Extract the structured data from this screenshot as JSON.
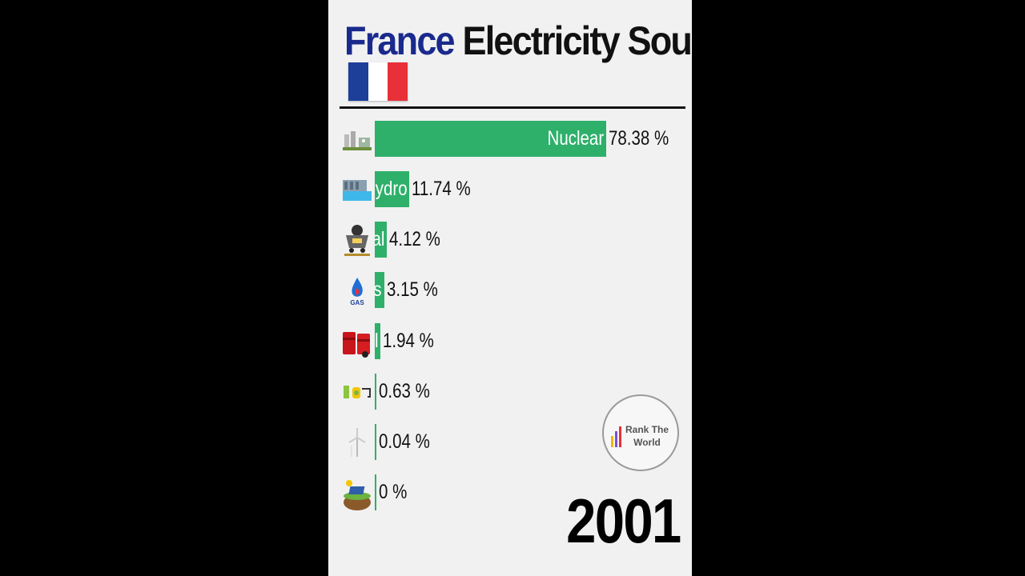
{
  "header": {
    "title_country": "France",
    "title_rest": "Electricity Source"
  },
  "flag_colors": [
    "#1d3f9a",
    "#ffffff",
    "#e8303a"
  ],
  "badge": {
    "line1": "Rank The",
    "line2": "World"
  },
  "year": "2001",
  "chart_data": {
    "type": "bar",
    "orientation": "horizontal",
    "categories": [
      "Nuclear",
      "Hydro",
      "Coal",
      "Gas",
      "Oil",
      "Biofuel",
      "Wind",
      "Solar"
    ],
    "category_labels_visible": [
      "Nuclear",
      "ydro",
      "al",
      "s",
      "l",
      "",
      "",
      ""
    ],
    "values": [
      78.38,
      11.74,
      4.12,
      3.15,
      1.94,
      0.63,
      0.04,
      0
    ],
    "value_labels": [
      "78.38 %",
      "11.74 %",
      "4.12 %",
      "3.15 %",
      "1.94 %",
      "0.63 %",
      "0.04 %",
      "0 %"
    ],
    "icons": [
      "nuclear-plant-icon",
      "hydro-dam-icon",
      "coal-cart-icon",
      "gas-flame-icon",
      "oil-barrels-icon",
      "biofuel-icon",
      "wind-turbine-icon",
      "solar-panel-icon"
    ],
    "xlim": [
      0,
      78.38
    ],
    "bar_color": "#2eb06a",
    "grid": false
  }
}
